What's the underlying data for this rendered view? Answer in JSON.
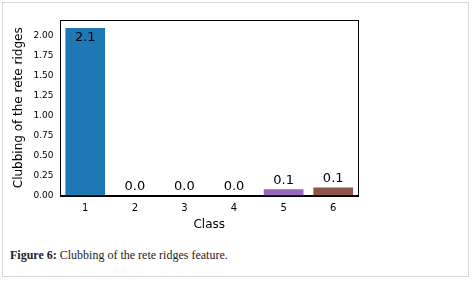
{
  "chart_data": {
    "type": "bar",
    "caption": "Figure 6: Clubbing of the rete ridges feature.",
    "x_label": "Class",
    "y_label": "Clubbing of the rete ridges",
    "categories": [
      "1",
      "2",
      "3",
      "4",
      "5",
      "6"
    ],
    "values": [
      2.1,
      0.0,
      0.0,
      0.0,
      0.08,
      0.1
    ],
    "value_labels": [
      "2.1",
      "0.0",
      "0.0",
      "0.0",
      "0.1",
      "0.1"
    ],
    "data_labels": true,
    "colors": [
      "#1f77b4",
      "#ff7f0e",
      "#2ca02c",
      "#d62728",
      "#9467bd",
      "#8c564b"
    ],
    "ylim": [
      0,
      2.2
    ],
    "yticks": [
      {
        "value": 0,
        "label": "0.00"
      },
      {
        "value": 0.25,
        "label": "0.25"
      },
      {
        "value": 0.5,
        "label": "0.50"
      },
      {
        "value": 0.75,
        "label": "0.75"
      },
      {
        "value": 1.0,
        "label": "1.00"
      },
      {
        "value": 1.25,
        "label": "1.25"
      },
      {
        "value": 1.5,
        "label": "1.50"
      },
      {
        "value": 1.75,
        "label": "1.75"
      },
      {
        "value": 2.0,
        "label": "2.00"
      }
    ],
    "grid": false
  }
}
